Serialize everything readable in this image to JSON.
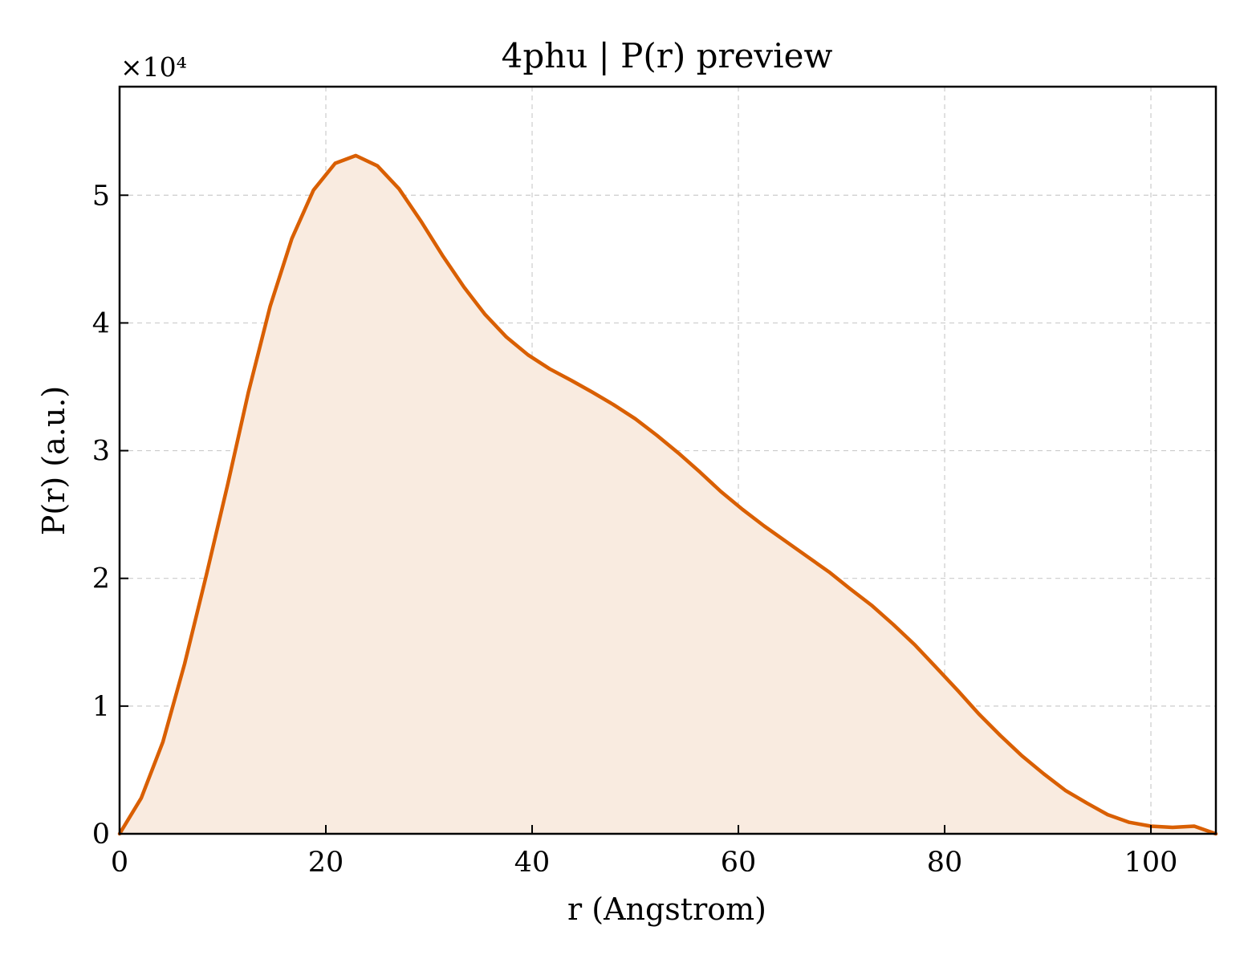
{
  "chart_data": {
    "type": "area",
    "title": "4phu | P(r) preview",
    "xlabel": "r (Angstrom)",
    "ylabel": "P(r) (a.u.)",
    "y_multiplier": "×10⁴",
    "xlim": [
      0,
      106.3
    ],
    "ylim": [
      0,
      58500
    ],
    "x_ticks": [
      0,
      20,
      40,
      60,
      80,
      100
    ],
    "x_tick_labels": [
      "0",
      "20",
      "40",
      "60",
      "80",
      "100"
    ],
    "y_ticks": [
      0,
      10000,
      20000,
      30000,
      40000,
      50000
    ],
    "y_tick_labels": [
      "0",
      "1",
      "2",
      "3",
      "4",
      "5"
    ],
    "grid": true,
    "colors": {
      "line": "#d95f02",
      "fill": "#f9ebe0"
    },
    "series": [
      {
        "x": [
          0,
          2.1,
          4.2,
          6.3,
          8.4,
          10.5,
          12.5,
          14.6,
          16.7,
          18.8,
          20.9,
          22.9,
          25.0,
          27.1,
          29.2,
          31.3,
          33.4,
          35.4,
          37.5,
          39.6,
          41.7,
          43.8,
          45.8,
          47.9,
          50.0,
          52.1,
          54.2,
          56.3,
          58.3,
          60.4,
          62.5,
          64.6,
          66.7,
          68.8,
          70.8,
          72.9,
          75.0,
          77.1,
          79.2,
          81.3,
          83.3,
          85.4,
          87.5,
          89.6,
          91.7,
          93.8,
          95.8,
          97.9,
          100.0,
          102.1,
          104.2,
          106.3
        ],
        "y": [
          0,
          2800,
          7200,
          13300,
          20200,
          27400,
          34600,
          41300,
          46600,
          50400,
          52500,
          53100,
          52300,
          50500,
          48000,
          45300,
          42800,
          40700,
          38900,
          37500,
          36400,
          35500,
          34600,
          33600,
          32500,
          31200,
          29800,
          28300,
          26800,
          25400,
          24100,
          22900,
          21700,
          20500,
          19200,
          17900,
          16400,
          14800,
          13000,
          11200,
          9400,
          7700,
          6100,
          4700,
          3400,
          2400,
          1500,
          900,
          600,
          500,
          600,
          0
        ]
      }
    ]
  }
}
